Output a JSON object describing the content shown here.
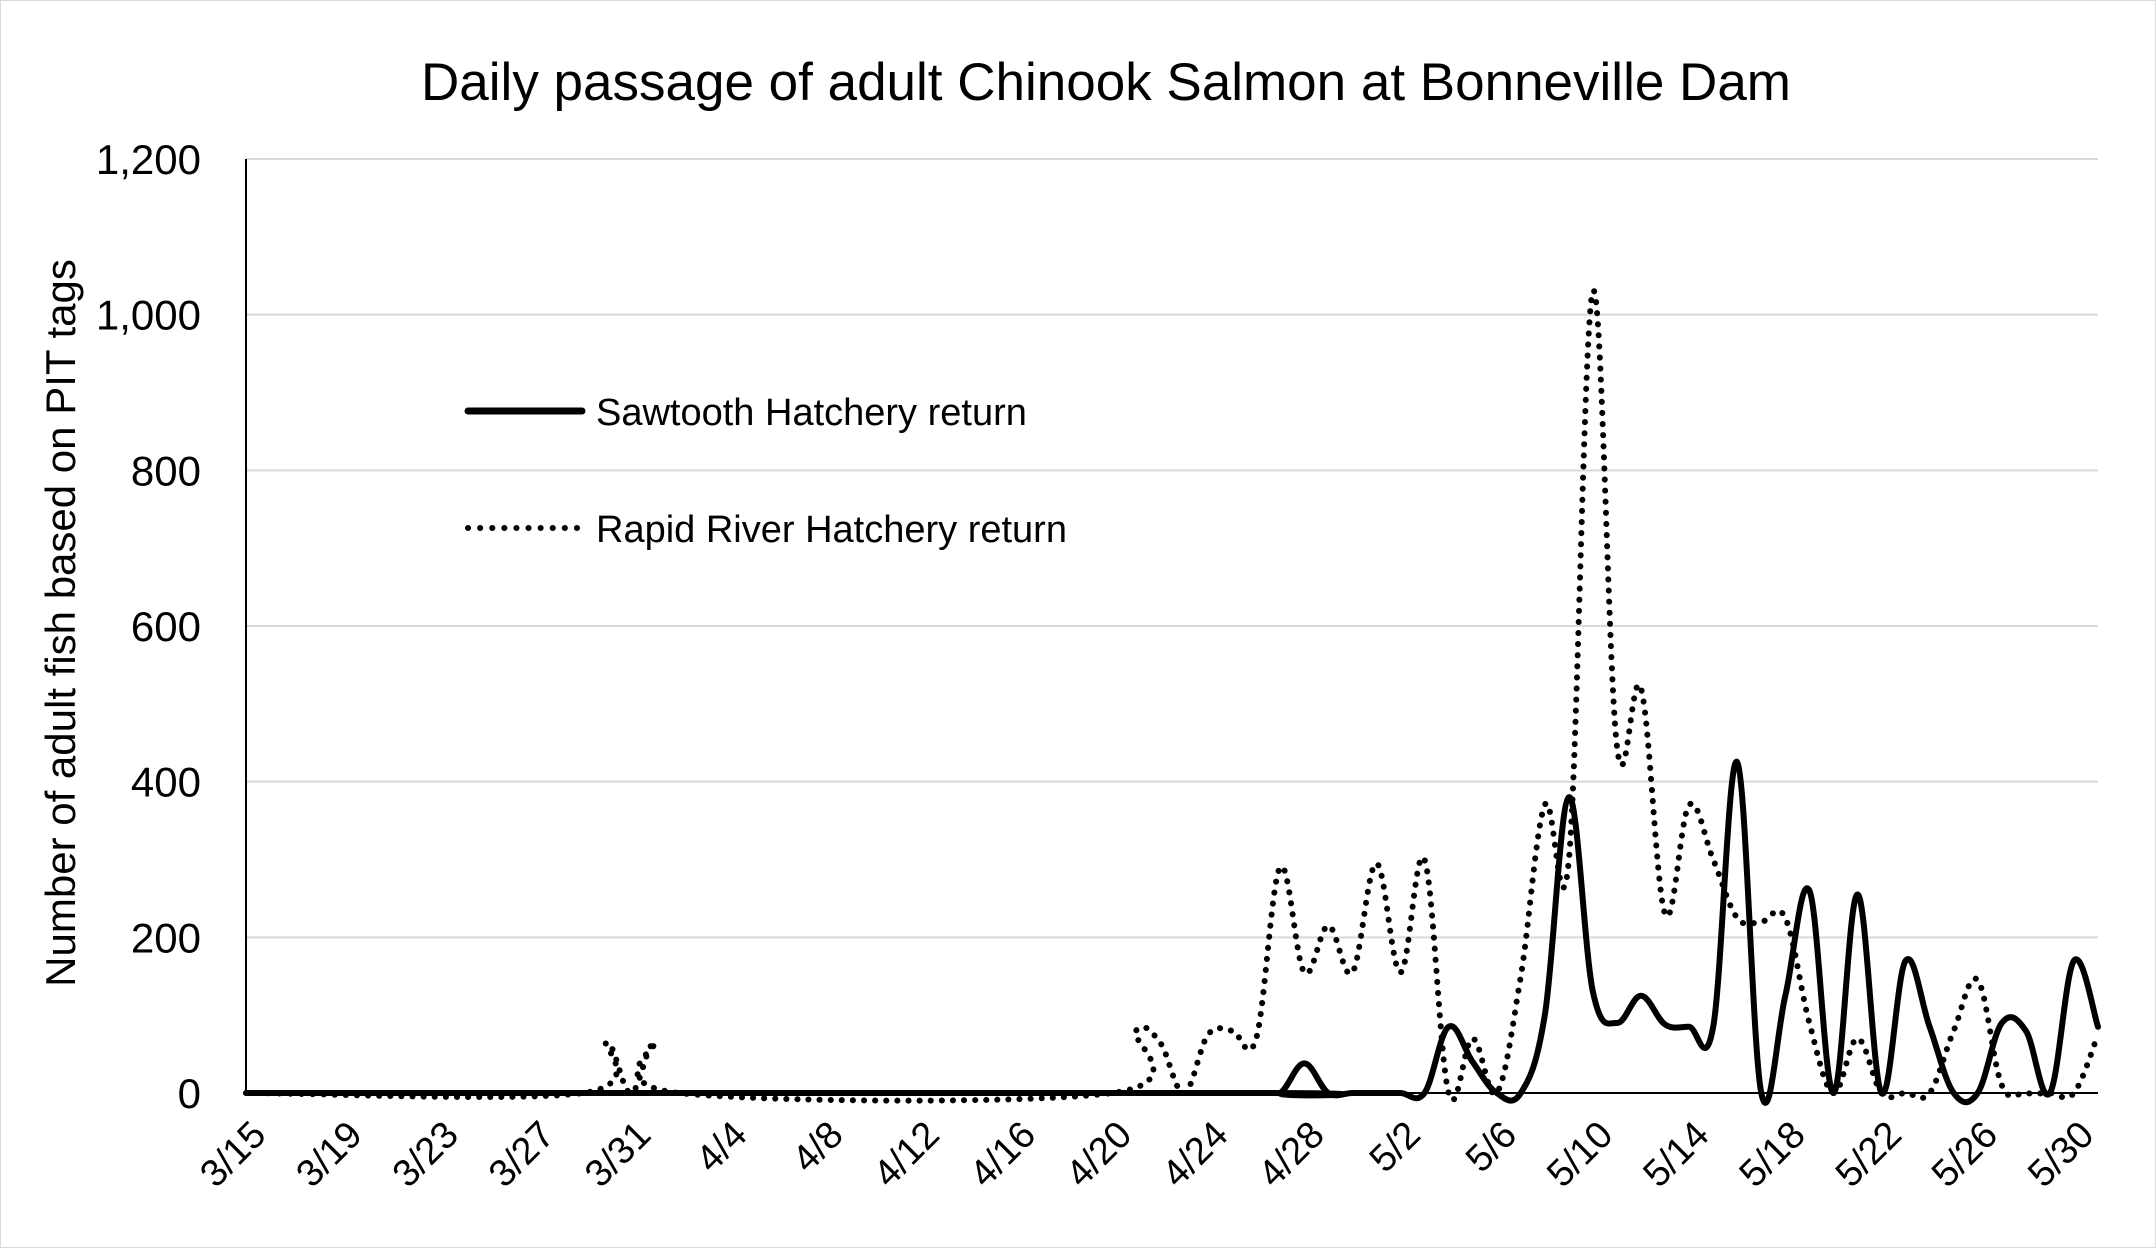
{
  "chart_data": {
    "type": "line",
    "title": "Daily passage of adult Chinook Salmon at Bonneville Dam",
    "ylabel": "Number of adult fish based on PIT tags",
    "xlabel": "",
    "ylim": [
      0,
      1200
    ],
    "y_ticks": [
      0,
      200,
      400,
      600,
      800,
      1000,
      1200
    ],
    "y_tick_labels": [
      "0",
      "200",
      "400",
      "600",
      "800",
      "1,000",
      "1,200"
    ],
    "x_tick_labels": [
      "3/15",
      "3/19",
      "3/23",
      "3/27",
      "3/31",
      "4/4",
      "4/8",
      "4/12",
      "4/16",
      "4/20",
      "4/24",
      "4/28",
      "5/2",
      "5/6",
      "5/10",
      "5/14",
      "5/18",
      "5/22",
      "5/26",
      "5/30"
    ],
    "x_tick_days": [
      0,
      4,
      8,
      12,
      16,
      20,
      24,
      28,
      32,
      36,
      40,
      44,
      48,
      52,
      56,
      60,
      64,
      68,
      72,
      76
    ],
    "x_range": [
      "3/15",
      "5/31"
    ],
    "grid": "horizontal",
    "legend_position": "upper-left inside plot",
    "series": [
      {
        "name": "Sawtooth Hatchery return",
        "style": "solid",
        "color": "#000000",
        "points": [
          [
            "3/15",
            0
          ],
          [
            "4/26",
            0
          ],
          [
            "4/27",
            0
          ],
          [
            "4/28",
            38
          ],
          [
            "4/29",
            0
          ],
          [
            "4/30",
            0
          ],
          [
            "5/1",
            0
          ],
          [
            "5/2",
            0
          ],
          [
            "5/3",
            0
          ],
          [
            "5/4",
            85
          ],
          [
            "5/5",
            40
          ],
          [
            "5/6",
            0
          ],
          [
            "5/7",
            0
          ],
          [
            "5/8",
            100
          ],
          [
            "5/9",
            380
          ],
          [
            "5/10",
            130
          ],
          [
            "5/11",
            90
          ],
          [
            "5/12",
            125
          ],
          [
            "5/13",
            88
          ],
          [
            "5/14",
            85
          ],
          [
            "5/15",
            85
          ],
          [
            "5/16",
            425
          ],
          [
            "5/17",
            0
          ],
          [
            "5/18",
            125
          ],
          [
            "5/19",
            260
          ],
          [
            "5/20",
            0
          ],
          [
            "5/21",
            255
          ],
          [
            "5/22",
            0
          ],
          [
            "5/23",
            170
          ],
          [
            "5/24",
            85
          ],
          [
            "5/25",
            0
          ],
          [
            "5/26",
            0
          ],
          [
            "5/27",
            90
          ],
          [
            "5/28",
            80
          ],
          [
            "5/29",
            0
          ],
          [
            "5/30",
            170
          ],
          [
            "5/31",
            85
          ]
        ]
      },
      {
        "name": "Rapid River Hatchery return",
        "style": "dotted",
        "color": "#000000",
        "points": [
          [
            "3/15",
            0
          ],
          [
            "3/29",
            0
          ],
          [
            "3/30",
            65
          ],
          [
            "3/31",
            0
          ],
          [
            "4/1",
            65
          ],
          [
            "4/2",
            0
          ],
          [
            "4/20",
            0
          ],
          [
            "4/21",
            80
          ],
          [
            "4/22",
            65
          ],
          [
            "4/23",
            0
          ],
          [
            "4/24",
            75
          ],
          [
            "4/25",
            80
          ],
          [
            "4/26",
            70
          ],
          [
            "4/27",
            290
          ],
          [
            "4/28",
            155
          ],
          [
            "4/29",
            215
          ],
          [
            "4/30",
            155
          ],
          [
            "5/1",
            295
          ],
          [
            "5/2",
            155
          ],
          [
            "5/3",
            300
          ],
          [
            "5/4",
            0
          ],
          [
            "5/5",
            70
          ],
          [
            "5/6",
            0
          ],
          [
            "5/7",
            150
          ],
          [
            "5/8",
            370
          ],
          [
            "5/9",
            300
          ],
          [
            "5/10",
            1030
          ],
          [
            "5/11",
            445
          ],
          [
            "5/12",
            520
          ],
          [
            "5/13",
            230
          ],
          [
            "5/14",
            370
          ],
          [
            "5/15",
            300
          ],
          [
            "5/16",
            225
          ],
          [
            "5/17",
            220
          ],
          [
            "5/18",
            225
          ],
          [
            "5/19",
            90
          ],
          [
            "5/20",
            0
          ],
          [
            "5/21",
            70
          ],
          [
            "5/22",
            0
          ],
          [
            "5/23",
            0
          ],
          [
            "5/24",
            0
          ],
          [
            "5/25",
            80
          ],
          [
            "5/26",
            145
          ],
          [
            "5/27",
            10
          ],
          [
            "5/28",
            0
          ],
          [
            "5/29",
            0
          ],
          [
            "5/30",
            0
          ],
          [
            "5/31",
            75
          ]
        ]
      }
    ]
  }
}
